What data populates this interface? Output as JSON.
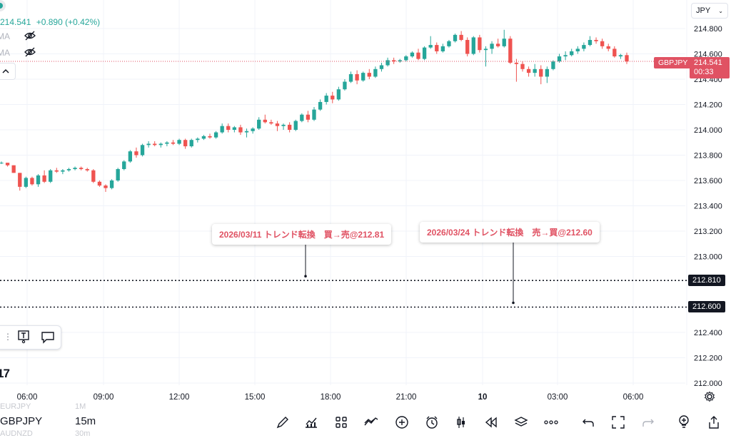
{
  "symbol_legend": {
    "price": "214.541",
    "change": "+0.890 (+0.42%)",
    "indicators": [
      "MA",
      "MA"
    ]
  },
  "currency_selector": "JPY",
  "symbol_tag": "GBPJPY",
  "last_price": "214.541",
  "countdown": "00:33",
  "hline_1": "212.810",
  "hline_2": "212.600",
  "annotations": [
    {
      "text": "2026/03/11 トレンド転換　買→売@212.81"
    },
    {
      "text": "2026/03/24 トレンド転換　売→買@212.60"
    }
  ],
  "price_axis": [
    "214.800",
    "214.600",
    "214.400",
    "214.200",
    "214.000",
    "213.800",
    "213.600",
    "213.400",
    "213.200",
    "213.000",
    "212.400",
    "212.200",
    "212.000"
  ],
  "time_axis": [
    "06:00",
    "09:00",
    "12:00",
    "15:00",
    "18:00",
    "21:00",
    "10",
    "03:00",
    "06:00"
  ],
  "bottom": {
    "symbol": "GBPJPY",
    "interval": "15m",
    "watch_above": {
      "symbol": "EURJPY",
      "interval": "1M"
    },
    "watch_below": {
      "symbol": "AUDNZD",
      "interval": "30m"
    }
  },
  "colors": {
    "up": "#26a69a",
    "down": "#ef5350",
    "accent": "#e05263"
  },
  "chart_data": {
    "type": "candlestick",
    "ylim": [
      212.0,
      214.8
    ],
    "candles": [
      [
        213.74,
        213.75,
        213.73,
        213.74
      ],
      [
        213.74,
        213.74,
        213.71,
        213.72
      ],
      [
        213.72,
        213.72,
        213.66,
        213.66
      ],
      [
        213.66,
        213.66,
        213.52,
        213.55
      ],
      [
        213.55,
        213.63,
        213.54,
        213.62
      ],
      [
        213.62,
        213.63,
        213.56,
        213.57
      ],
      [
        213.57,
        213.65,
        213.55,
        213.64
      ],
      [
        213.64,
        213.68,
        213.58,
        213.59
      ],
      [
        213.59,
        213.69,
        213.58,
        213.68
      ],
      [
        213.68,
        213.7,
        213.66,
        213.67
      ],
      [
        213.67,
        213.69,
        213.65,
        213.68
      ],
      [
        213.68,
        213.7,
        213.67,
        213.69
      ],
      [
        213.69,
        213.71,
        213.68,
        213.7
      ],
      [
        213.7,
        213.71,
        213.68,
        213.69
      ],
      [
        213.69,
        213.7,
        213.67,
        213.68
      ],
      [
        213.68,
        213.69,
        213.58,
        213.59
      ],
      [
        213.59,
        213.6,
        213.55,
        213.56
      ],
      [
        213.56,
        213.57,
        213.51,
        213.54
      ],
      [
        213.54,
        213.61,
        213.53,
        213.6
      ],
      [
        213.6,
        213.7,
        213.59,
        213.69
      ],
      [
        213.69,
        213.76,
        213.68,
        213.75
      ],
      [
        213.75,
        213.84,
        213.74,
        213.83
      ],
      [
        213.83,
        213.86,
        213.78,
        213.8
      ],
      [
        213.8,
        213.89,
        213.79,
        213.88
      ],
      [
        213.88,
        213.91,
        213.86,
        213.89
      ],
      [
        213.89,
        213.91,
        213.87,
        213.88
      ],
      [
        213.88,
        213.9,
        213.86,
        213.89
      ],
      [
        213.89,
        213.91,
        213.87,
        213.9
      ],
      [
        213.9,
        213.92,
        213.88,
        213.89
      ],
      [
        213.89,
        213.93,
        213.88,
        213.92
      ],
      [
        213.92,
        213.93,
        213.85,
        213.87
      ],
      [
        213.87,
        213.93,
        213.86,
        213.92
      ],
      [
        213.92,
        213.94,
        213.9,
        213.93
      ],
      [
        213.93,
        213.96,
        213.92,
        213.95
      ],
      [
        213.95,
        213.97,
        213.93,
        213.94
      ],
      [
        213.94,
        213.99,
        213.93,
        213.98
      ],
      [
        213.98,
        214.05,
        213.97,
        214.03
      ],
      [
        214.03,
        214.05,
        213.98,
        214.0
      ],
      [
        214.0,
        214.03,
        213.98,
        214.02
      ],
      [
        214.02,
        214.04,
        213.96,
        213.98
      ],
      [
        213.98,
        214.01,
        213.94,
        213.99
      ],
      [
        213.99,
        214.02,
        213.97,
        214.01
      ],
      [
        214.01,
        214.1,
        214.0,
        214.08
      ],
      [
        214.08,
        214.12,
        214.05,
        214.06
      ],
      [
        214.06,
        214.08,
        214.04,
        214.05
      ],
      [
        214.05,
        214.07,
        213.99,
        214.03
      ],
      [
        214.03,
        214.05,
        214.0,
        214.04
      ],
      [
        214.04,
        214.06,
        213.98,
        214.0
      ],
      [
        214.0,
        214.08,
        213.99,
        214.07
      ],
      [
        214.07,
        214.13,
        214.06,
        214.12
      ],
      [
        214.12,
        214.15,
        214.06,
        214.08
      ],
      [
        214.08,
        214.18,
        214.07,
        214.16
      ],
      [
        214.16,
        214.24,
        214.15,
        214.22
      ],
      [
        214.22,
        214.29,
        214.2,
        214.27
      ],
      [
        214.27,
        214.3,
        214.21,
        214.24
      ],
      [
        214.24,
        214.34,
        214.23,
        214.32
      ],
      [
        214.32,
        214.4,
        214.31,
        214.38
      ],
      [
        214.38,
        214.46,
        214.37,
        214.44
      ],
      [
        214.44,
        214.47,
        214.36,
        214.39
      ],
      [
        214.39,
        214.46,
        214.38,
        214.45
      ],
      [
        214.45,
        214.48,
        214.4,
        214.42
      ],
      [
        214.42,
        214.5,
        214.41,
        214.48
      ],
      [
        214.48,
        214.53,
        214.46,
        214.51
      ],
      [
        214.51,
        214.57,
        214.5,
        214.55
      ],
      [
        214.55,
        214.57,
        214.52,
        214.54
      ],
      [
        214.54,
        214.56,
        214.53,
        214.55
      ],
      [
        214.55,
        214.59,
        214.54,
        214.58
      ],
      [
        214.58,
        214.62,
        214.57,
        214.61
      ],
      [
        214.61,
        214.64,
        214.55,
        214.56
      ],
      [
        214.56,
        214.66,
        214.55,
        214.65
      ],
      [
        214.65,
        214.74,
        214.64,
        214.67
      ],
      [
        214.67,
        214.69,
        214.6,
        214.62
      ],
      [
        214.62,
        214.68,
        214.61,
        214.66
      ],
      [
        214.66,
        214.71,
        214.65,
        214.7
      ],
      [
        214.7,
        214.76,
        214.69,
        214.75
      ],
      [
        214.75,
        214.78,
        214.7,
        214.71
      ],
      [
        214.71,
        214.73,
        214.58,
        214.6
      ],
      [
        214.6,
        214.74,
        214.59,
        214.73
      ],
      [
        214.73,
        214.75,
        214.61,
        214.63
      ],
      [
        214.63,
        214.66,
        214.5,
        214.64
      ],
      [
        214.64,
        214.7,
        214.6,
        214.68
      ],
      [
        214.68,
        214.72,
        214.65,
        214.66
      ],
      [
        214.66,
        214.79,
        214.65,
        214.72
      ],
      [
        214.72,
        214.74,
        214.52,
        214.53
      ],
      [
        214.53,
        214.56,
        214.38,
        214.52
      ],
      [
        214.52,
        214.54,
        214.46,
        214.48
      ],
      [
        214.48,
        214.5,
        214.42,
        214.45
      ],
      [
        214.45,
        214.52,
        214.42,
        214.48
      ],
      [
        214.48,
        214.51,
        214.36,
        214.42
      ],
      [
        214.42,
        214.5,
        214.37,
        214.48
      ],
      [
        214.48,
        214.55,
        214.47,
        214.54
      ],
      [
        214.54,
        214.6,
        214.53,
        214.58
      ],
      [
        214.58,
        214.62,
        214.55,
        214.59
      ],
      [
        214.59,
        214.64,
        214.58,
        214.62
      ],
      [
        214.62,
        214.66,
        214.6,
        214.64
      ],
      [
        214.64,
        214.69,
        214.62,
        214.67
      ],
      [
        214.67,
        214.74,
        214.66,
        214.71
      ],
      [
        214.71,
        214.73,
        214.68,
        214.7
      ],
      [
        214.7,
        214.72,
        214.64,
        214.66
      ],
      [
        214.66,
        214.68,
        214.62,
        214.64
      ],
      [
        214.64,
        214.66,
        214.57,
        214.58
      ],
      [
        214.58,
        214.6,
        214.56,
        214.59
      ],
      [
        214.59,
        214.61,
        214.52,
        214.54
      ]
    ]
  }
}
